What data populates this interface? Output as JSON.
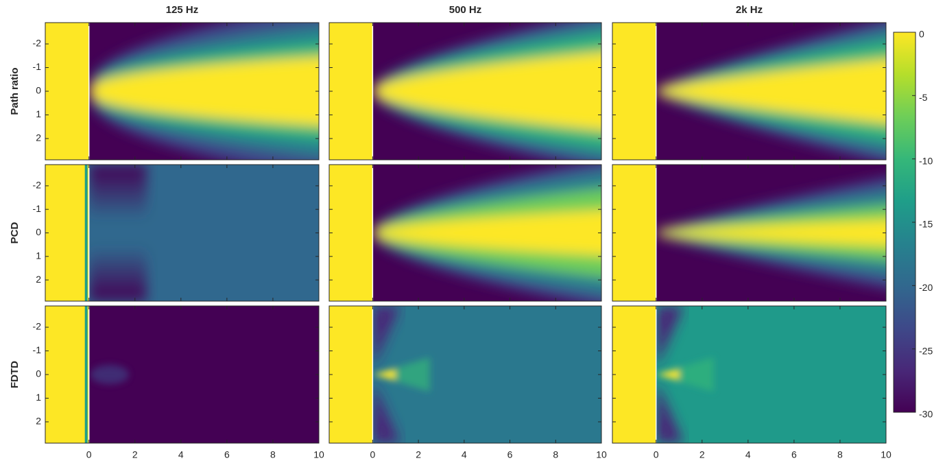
{
  "chart_data": {
    "type": "heatmap",
    "column_titles": [
      "125 Hz",
      "500 Hz",
      "2k Hz"
    ],
    "row_labels": [
      "Path ratio",
      "PCD",
      "FDTD"
    ],
    "xlim": [
      -1.9,
      10
    ],
    "xticks": [
      0,
      2,
      4,
      6,
      8,
      10
    ],
    "ylim": [
      -2.9,
      2.9
    ],
    "yticks": [
      -2,
      -1,
      0,
      1,
      2
    ],
    "y_reversed": true,
    "colorbar": {
      "colormap": "viridis",
      "clim": [
        -30,
        0
      ],
      "ticks": [
        0,
        -5,
        -10,
        -15,
        -20,
        -25,
        -30
      ]
    }
  }
}
